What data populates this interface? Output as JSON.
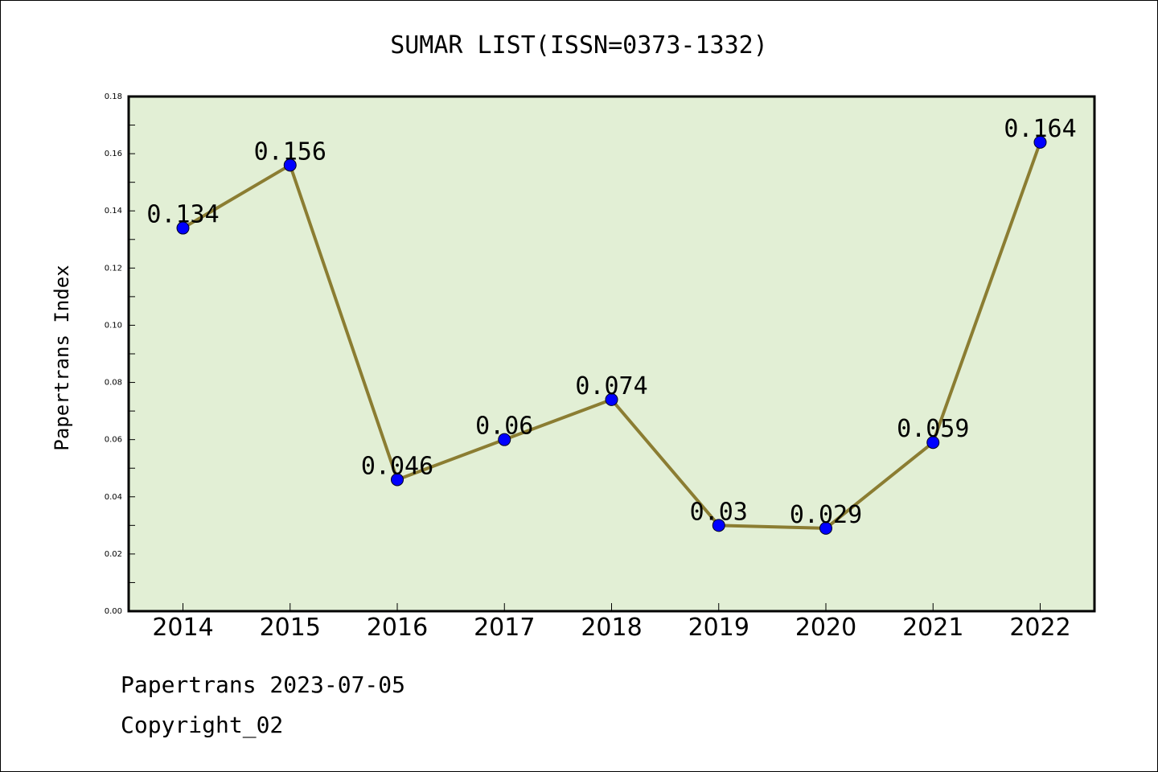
{
  "chart_data": {
    "type": "line",
    "title": "SUMAR LIST(ISSN=0373-1332)",
    "xlabel": "",
    "ylabel": "Papertrans Index",
    "categories": [
      "2014",
      "2015",
      "2016",
      "2017",
      "2018",
      "2019",
      "2020",
      "2021",
      "2022"
    ],
    "values": [
      0.134,
      0.156,
      0.046,
      0.06,
      0.074,
      0.03,
      0.029,
      0.059,
      0.164
    ],
    "value_labels": [
      "0.134",
      "0.156",
      "0.046",
      "0.06",
      "0.074",
      "0.03",
      "0.029",
      "0.059",
      "0.164"
    ],
    "ylim": [
      0,
      0.18
    ],
    "yticks": [
      "0.00",
      "0.02",
      "0.04",
      "0.06",
      "0.08",
      "0.10",
      "0.12",
      "0.14",
      "0.16",
      "0.18"
    ],
    "grid": false,
    "colors": {
      "plot_background": "#e2efd5",
      "line": "#8b7d32",
      "marker": "#0000ff"
    }
  },
  "footer": {
    "line1": "Papertrans 2023-07-05",
    "line2": "Copyright_02"
  }
}
